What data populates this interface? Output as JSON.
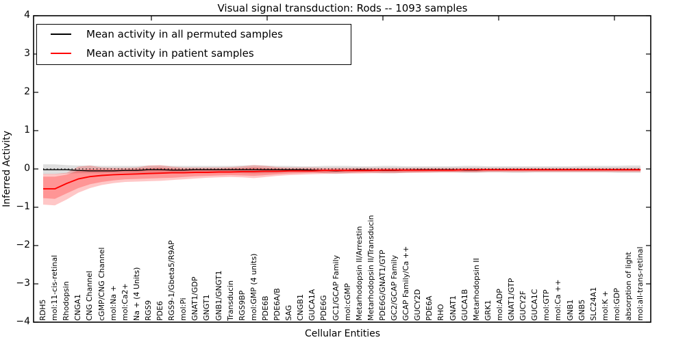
{
  "title": "Visual signal transduction: Rods -- 1093 samples",
  "legend": {
    "items": [
      {
        "label": "Mean activity in all permuted samples",
        "color": "#000000"
      },
      {
        "label": "Mean activity in patient samples",
        "color": "#ff0000"
      }
    ],
    "position": "upper left"
  },
  "axes": {
    "xlabel": "Cellular Entities",
    "ylabel": "Inferred Activity",
    "yticks": [
      4,
      3,
      2,
      1,
      0,
      -1,
      -2,
      -3,
      -4
    ],
    "ylim": [
      -4,
      4
    ]
  },
  "chart_data": {
    "type": "line",
    "title": "Visual signal transduction: Rods -- 1093 samples",
    "xlabel": "Cellular Entities",
    "ylabel": "Inferred Activity",
    "ylim": [
      -4,
      4
    ],
    "grid": false,
    "legend_position": "upper left",
    "categories": [
      "RDH5",
      "mol:11-cis-retinal",
      "Rhodopsin",
      "CNGA1",
      "CNG Channel",
      "cGMP/CNG Channel",
      "mol:Na +",
      "mol:Ca2+",
      "Na + (4 Units)",
      "RGS9",
      "PDE6",
      "RGS9-1/Gbeta5/R9AP",
      "mol:Pi",
      "GNAT1/GDP",
      "GNGT1",
      "GNB1/GNGT1",
      "Transducin",
      "RGS9BP",
      "mol:GMP (4 units)",
      "PDE6B",
      "PDE6A/B",
      "SAG",
      "CNGB1",
      "GUCA1A",
      "PDE6G",
      "GC1/GCAP Family",
      "mol:cGMP",
      "Metarhodopsin II/Arrestin",
      "Metarhodopsin II/Transducin",
      "PDE6G/GNAT1/GTP",
      "GC2/GCAP Family",
      "GCAP Family/Ca ++",
      "GUCY2D",
      "PDE6A",
      "RHO",
      "GNAT1",
      "GUCA1B",
      "Metarhodopsin II",
      "GRK1",
      "mol:ADP",
      "GNAT1/GTP",
      "GUCY2F",
      "GUCA1C",
      "mol:GTP",
      "mol:Ca ++",
      "GNB1",
      "GNB5",
      "SLC24A1",
      "mol:K +",
      "mol:GDP",
      "absorption of light",
      "mol:all-trans-retinal"
    ],
    "series": [
      {
        "name": "Mean activity in all permuted samples",
        "color": "#000000",
        "values": [
          -0.02,
          -0.02,
          -0.02,
          -0.04,
          -0.05,
          -0.05,
          -0.05,
          -0.04,
          -0.04,
          -0.02,
          -0.02,
          -0.03,
          -0.03,
          -0.02,
          -0.02,
          -0.02,
          -0.02,
          -0.02,
          -0.02,
          -0.02,
          -0.02,
          -0.02,
          -0.02,
          -0.03,
          -0.04,
          -0.05,
          -0.04,
          -0.02,
          -0.03,
          -0.04,
          -0.04,
          -0.03,
          -0.02,
          -0.02,
          -0.02,
          -0.02,
          -0.03,
          -0.03,
          -0.02,
          -0.02,
          -0.02,
          -0.02,
          -0.02,
          -0.02,
          -0.02,
          -0.02,
          -0.02,
          -0.02,
          -0.02,
          -0.02,
          -0.02,
          -0.02
        ]
      },
      {
        "name": "Mean activity in patient samples",
        "color": "#ff0000",
        "values": [
          -0.52,
          -0.52,
          -0.38,
          -0.26,
          -0.2,
          -0.17,
          -0.15,
          -0.14,
          -0.13,
          -0.12,
          -0.11,
          -0.1,
          -0.1,
          -0.09,
          -0.09,
          -0.08,
          -0.08,
          -0.07,
          -0.07,
          -0.06,
          -0.06,
          -0.05,
          -0.05,
          -0.05,
          -0.04,
          -0.04,
          -0.04,
          -0.04,
          -0.04,
          -0.03,
          -0.03,
          -0.03,
          -0.03,
          -0.03,
          -0.03,
          -0.03,
          -0.02,
          -0.02,
          -0.02,
          -0.02,
          -0.02,
          -0.02,
          -0.02,
          -0.02,
          -0.02,
          -0.02,
          -0.02,
          -0.02,
          -0.02,
          -0.02,
          -0.02,
          -0.02
        ]
      }
    ],
    "bands": [
      {
        "name": "permuted-band",
        "color": "#000000",
        "opacity": 0.13,
        "upper": [
          0.12,
          0.12,
          0.1,
          0.09,
          0.09,
          0.08,
          0.08,
          0.08,
          0.08,
          0.09,
          0.09,
          0.08,
          0.08,
          0.08,
          0.08,
          0.08,
          0.08,
          0.09,
          0.1,
          0.09,
          0.08,
          0.08,
          0.07,
          0.07,
          0.08,
          0.08,
          0.08,
          0.07,
          0.07,
          0.08,
          0.08,
          0.07,
          0.07,
          0.07,
          0.07,
          0.07,
          0.08,
          0.08,
          0.07,
          0.07,
          0.07,
          0.07,
          0.07,
          0.07,
          0.07,
          0.07,
          0.08,
          0.08,
          0.08,
          0.08,
          0.09,
          0.09
        ],
        "lower": [
          -0.14,
          -0.14,
          -0.12,
          -0.11,
          -0.11,
          -0.11,
          -0.1,
          -0.1,
          -0.1,
          -0.11,
          -0.11,
          -0.1,
          -0.1,
          -0.1,
          -0.09,
          -0.09,
          -0.09,
          -0.11,
          -0.12,
          -0.11,
          -0.1,
          -0.09,
          -0.09,
          -0.09,
          -0.11,
          -0.12,
          -0.11,
          -0.09,
          -0.1,
          -0.11,
          -0.11,
          -0.1,
          -0.09,
          -0.09,
          -0.09,
          -0.09,
          -0.1,
          -0.1,
          -0.09,
          -0.09,
          -0.1,
          -0.1,
          -0.09,
          -0.09,
          -0.09,
          -0.09,
          -0.09,
          -0.09,
          -0.09,
          -0.1,
          -0.1,
          -0.1
        ]
      },
      {
        "name": "patient-band-outer",
        "color": "#ff0000",
        "opacity": 0.22,
        "upper": [
          -0.13,
          -0.13,
          -0.1,
          0.06,
          0.09,
          0.04,
          0.03,
          0.03,
          0.04,
          0.09,
          0.1,
          0.06,
          0.04,
          0.04,
          0.04,
          0.04,
          0.05,
          0.07,
          0.1,
          0.08,
          0.05,
          0.04,
          0.04,
          0.04,
          0.03,
          0.03,
          0.03,
          0.03,
          0.03,
          0.03,
          0.03,
          0.03,
          0.03,
          0.03,
          0.03,
          0.03,
          0.03,
          0.03,
          0.03,
          0.03,
          0.03,
          0.03,
          0.03,
          0.03,
          0.03,
          0.03,
          0.03,
          0.03,
          0.03,
          0.03,
          0.03,
          0.03
        ],
        "lower": [
          -0.93,
          -0.95,
          -0.8,
          -0.62,
          -0.5,
          -0.42,
          -0.37,
          -0.34,
          -0.33,
          -0.32,
          -0.31,
          -0.29,
          -0.27,
          -0.25,
          -0.23,
          -0.22,
          -0.21,
          -0.22,
          -0.24,
          -0.21,
          -0.18,
          -0.16,
          -0.15,
          -0.14,
          -0.13,
          -0.13,
          -0.12,
          -0.12,
          -0.11,
          -0.11,
          -0.11,
          -0.1,
          -0.1,
          -0.1,
          -0.09,
          -0.09,
          -0.09,
          -0.09,
          -0.08,
          -0.08,
          -0.08,
          -0.08,
          -0.08,
          -0.08,
          -0.08,
          -0.08,
          -0.08,
          -0.08,
          -0.08,
          -0.08,
          -0.08,
          -0.08
        ]
      },
      {
        "name": "patient-band-inner",
        "color": "#ff0000",
        "opacity": 0.25,
        "upper": [
          -0.2,
          -0.2,
          -0.15,
          -0.04,
          0.0,
          -0.01,
          -0.01,
          -0.01,
          0.0,
          0.02,
          0.03,
          0.01,
          0.0,
          0.0,
          0.0,
          0.0,
          0.01,
          0.02,
          0.04,
          0.02,
          0.01,
          0.0,
          0.0,
          0.0,
          0.0,
          0.0,
          0.0,
          0.0,
          0.0,
          0.0,
          0.0,
          0.0,
          0.0,
          0.0,
          0.0,
          0.0,
          0.0,
          0.0,
          0.0,
          0.0,
          0.0,
          0.0,
          0.0,
          0.0,
          0.0,
          0.0,
          0.0,
          0.0,
          0.0,
          0.0,
          0.0,
          0.0
        ],
        "lower": [
          -0.76,
          -0.78,
          -0.64,
          -0.5,
          -0.4,
          -0.34,
          -0.3,
          -0.27,
          -0.26,
          -0.25,
          -0.24,
          -0.23,
          -0.21,
          -0.19,
          -0.18,
          -0.17,
          -0.16,
          -0.17,
          -0.18,
          -0.16,
          -0.14,
          -0.12,
          -0.11,
          -0.1,
          -0.1,
          -0.09,
          -0.09,
          -0.09,
          -0.08,
          -0.08,
          -0.08,
          -0.08,
          -0.08,
          -0.07,
          -0.07,
          -0.07,
          -0.07,
          -0.07,
          -0.06,
          -0.06,
          -0.06,
          -0.06,
          -0.06,
          -0.06,
          -0.06,
          -0.06,
          -0.06,
          -0.06,
          -0.06,
          -0.06,
          -0.06,
          -0.06
        ]
      }
    ],
    "zero_line": {
      "y": 0,
      "style": "dotted",
      "color": "#000000"
    }
  }
}
